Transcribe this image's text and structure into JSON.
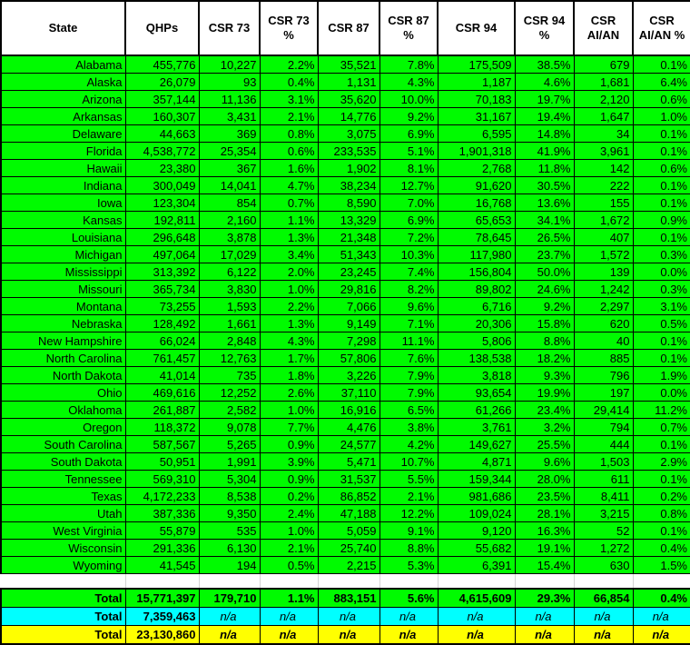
{
  "table": {
    "columns": [
      "State",
      "QHPs",
      "CSR 73",
      "CSR 73 %",
      "CSR 87",
      "CSR 87 %",
      "CSR 94",
      "CSR 94 %",
      "CSR AI/AN",
      "CSR AI/AN %"
    ],
    "rows": [
      [
        "Alabama",
        "455,776",
        "10,227",
        "2.2%",
        "35,521",
        "7.8%",
        "175,509",
        "38.5%",
        "679",
        "0.1%"
      ],
      [
        "Alaska",
        "26,079",
        "93",
        "0.4%",
        "1,131",
        "4.3%",
        "1,187",
        "4.6%",
        "1,681",
        "6.4%"
      ],
      [
        "Arizona",
        "357,144",
        "11,136",
        "3.1%",
        "35,620",
        "10.0%",
        "70,183",
        "19.7%",
        "2,120",
        "0.6%"
      ],
      [
        "Arkansas",
        "160,307",
        "3,431",
        "2.1%",
        "14,776",
        "9.2%",
        "31,167",
        "19.4%",
        "1,647",
        "1.0%"
      ],
      [
        "Delaware",
        "44,663",
        "369",
        "0.8%",
        "3,075",
        "6.9%",
        "6,595",
        "14.8%",
        "34",
        "0.1%"
      ],
      [
        "Florida",
        "4,538,772",
        "25,354",
        "0.6%",
        "233,535",
        "5.1%",
        "1,901,318",
        "41.9%",
        "3,961",
        "0.1%"
      ],
      [
        "Hawaii",
        "23,380",
        "367",
        "1.6%",
        "1,902",
        "8.1%",
        "2,768",
        "11.8%",
        "142",
        "0.6%"
      ],
      [
        "Indiana",
        "300,049",
        "14,041",
        "4.7%",
        "38,234",
        "12.7%",
        "91,620",
        "30.5%",
        "222",
        "0.1%"
      ],
      [
        "Iowa",
        "123,304",
        "854",
        "0.7%",
        "8,590",
        "7.0%",
        "16,768",
        "13.6%",
        "155",
        "0.1%"
      ],
      [
        "Kansas",
        "192,811",
        "2,160",
        "1.1%",
        "13,329",
        "6.9%",
        "65,653",
        "34.1%",
        "1,672",
        "0.9%"
      ],
      [
        "Louisiana",
        "296,648",
        "3,878",
        "1.3%",
        "21,348",
        "7.2%",
        "78,645",
        "26.5%",
        "407",
        "0.1%"
      ],
      [
        "Michigan",
        "497,064",
        "17,029",
        "3.4%",
        "51,343",
        "10.3%",
        "117,980",
        "23.7%",
        "1,572",
        "0.3%"
      ],
      [
        "Mississippi",
        "313,392",
        "6,122",
        "2.0%",
        "23,245",
        "7.4%",
        "156,804",
        "50.0%",
        "139",
        "0.0%"
      ],
      [
        "Missouri",
        "365,734",
        "3,830",
        "1.0%",
        "29,816",
        "8.2%",
        "89,802",
        "24.6%",
        "1,242",
        "0.3%"
      ],
      [
        "Montana",
        "73,255",
        "1,593",
        "2.2%",
        "7,066",
        "9.6%",
        "6,716",
        "9.2%",
        "2,297",
        "3.1%"
      ],
      [
        "Nebraska",
        "128,492",
        "1,661",
        "1.3%",
        "9,149",
        "7.1%",
        "20,306",
        "15.8%",
        "620",
        "0.5%"
      ],
      [
        "New Hampshire",
        "66,024",
        "2,848",
        "4.3%",
        "7,298",
        "11.1%",
        "5,806",
        "8.8%",
        "40",
        "0.1%"
      ],
      [
        "North Carolina",
        "761,457",
        "12,763",
        "1.7%",
        "57,806",
        "7.6%",
        "138,538",
        "18.2%",
        "885",
        "0.1%"
      ],
      [
        "North Dakota",
        "41,014",
        "735",
        "1.8%",
        "3,226",
        "7.9%",
        "3,818",
        "9.3%",
        "796",
        "1.9%"
      ],
      [
        "Ohio",
        "469,616",
        "12,252",
        "2.6%",
        "37,110",
        "7.9%",
        "93,654",
        "19.9%",
        "197",
        "0.0%"
      ],
      [
        "Oklahoma",
        "261,887",
        "2,582",
        "1.0%",
        "16,916",
        "6.5%",
        "61,266",
        "23.4%",
        "29,414",
        "11.2%"
      ],
      [
        "Oregon",
        "118,372",
        "9,078",
        "7.7%",
        "4,476",
        "3.8%",
        "3,761",
        "3.2%",
        "794",
        "0.7%"
      ],
      [
        "South Carolina",
        "587,567",
        "5,265",
        "0.9%",
        "24,577",
        "4.2%",
        "149,627",
        "25.5%",
        "444",
        "0.1%"
      ],
      [
        "South Dakota",
        "50,951",
        "1,991",
        "3.9%",
        "5,471",
        "10.7%",
        "4,871",
        "9.6%",
        "1,503",
        "2.9%"
      ],
      [
        "Tennessee",
        "569,310",
        "5,304",
        "0.9%",
        "31,537",
        "5.5%",
        "159,344",
        "28.0%",
        "611",
        "0.1%"
      ],
      [
        "Texas",
        "4,172,233",
        "8,538",
        "0.2%",
        "86,852",
        "2.1%",
        "981,686",
        "23.5%",
        "8,411",
        "0.2%"
      ],
      [
        "Utah",
        "387,336",
        "9,350",
        "2.4%",
        "47,188",
        "12.2%",
        "109,024",
        "28.1%",
        "3,215",
        "0.8%"
      ],
      [
        "West Virginia",
        "55,879",
        "535",
        "1.0%",
        "5,059",
        "9.1%",
        "9,120",
        "16.3%",
        "52",
        "0.1%"
      ],
      [
        "Wisconsin",
        "291,336",
        "6,130",
        "2.1%",
        "25,740",
        "8.8%",
        "55,682",
        "19.1%",
        "1,272",
        "0.4%"
      ],
      [
        "Wyoming",
        "41,545",
        "194",
        "0.5%",
        "2,215",
        "5.3%",
        "6,391",
        "15.4%",
        "630",
        "1.5%"
      ]
    ],
    "total_rows": [
      {
        "label": "Total",
        "values": [
          "15,771,397",
          "179,710",
          "1.1%",
          "883,151",
          "5.6%",
          "4,615,609",
          "29.3%",
          "66,854",
          "0.4%"
        ],
        "bg": "#00fb00",
        "na_bold": true
      },
      {
        "label": "Total",
        "values": [
          "7,359,463",
          "n/a",
          "n/a",
          "n/a",
          "n/a",
          "n/a",
          "n/a",
          "n/a",
          "n/a"
        ],
        "bg": "#00ffff",
        "na_bold": false
      },
      {
        "label": "Total",
        "values": [
          "23,130,860",
          "n/a",
          "n/a",
          "n/a",
          "n/a",
          "n/a",
          "n/a",
          "n/a",
          "n/a"
        ],
        "bg": "#ffff00",
        "na_bold": true
      }
    ],
    "colors": {
      "data_row_bg": "#00fb00",
      "total_row_2_bg": "#00ffff",
      "total_row_3_bg": "#ffff00",
      "header_bg": "#ffffff",
      "border": "#000000",
      "gap_gridline": "#d4d4d4"
    }
  }
}
